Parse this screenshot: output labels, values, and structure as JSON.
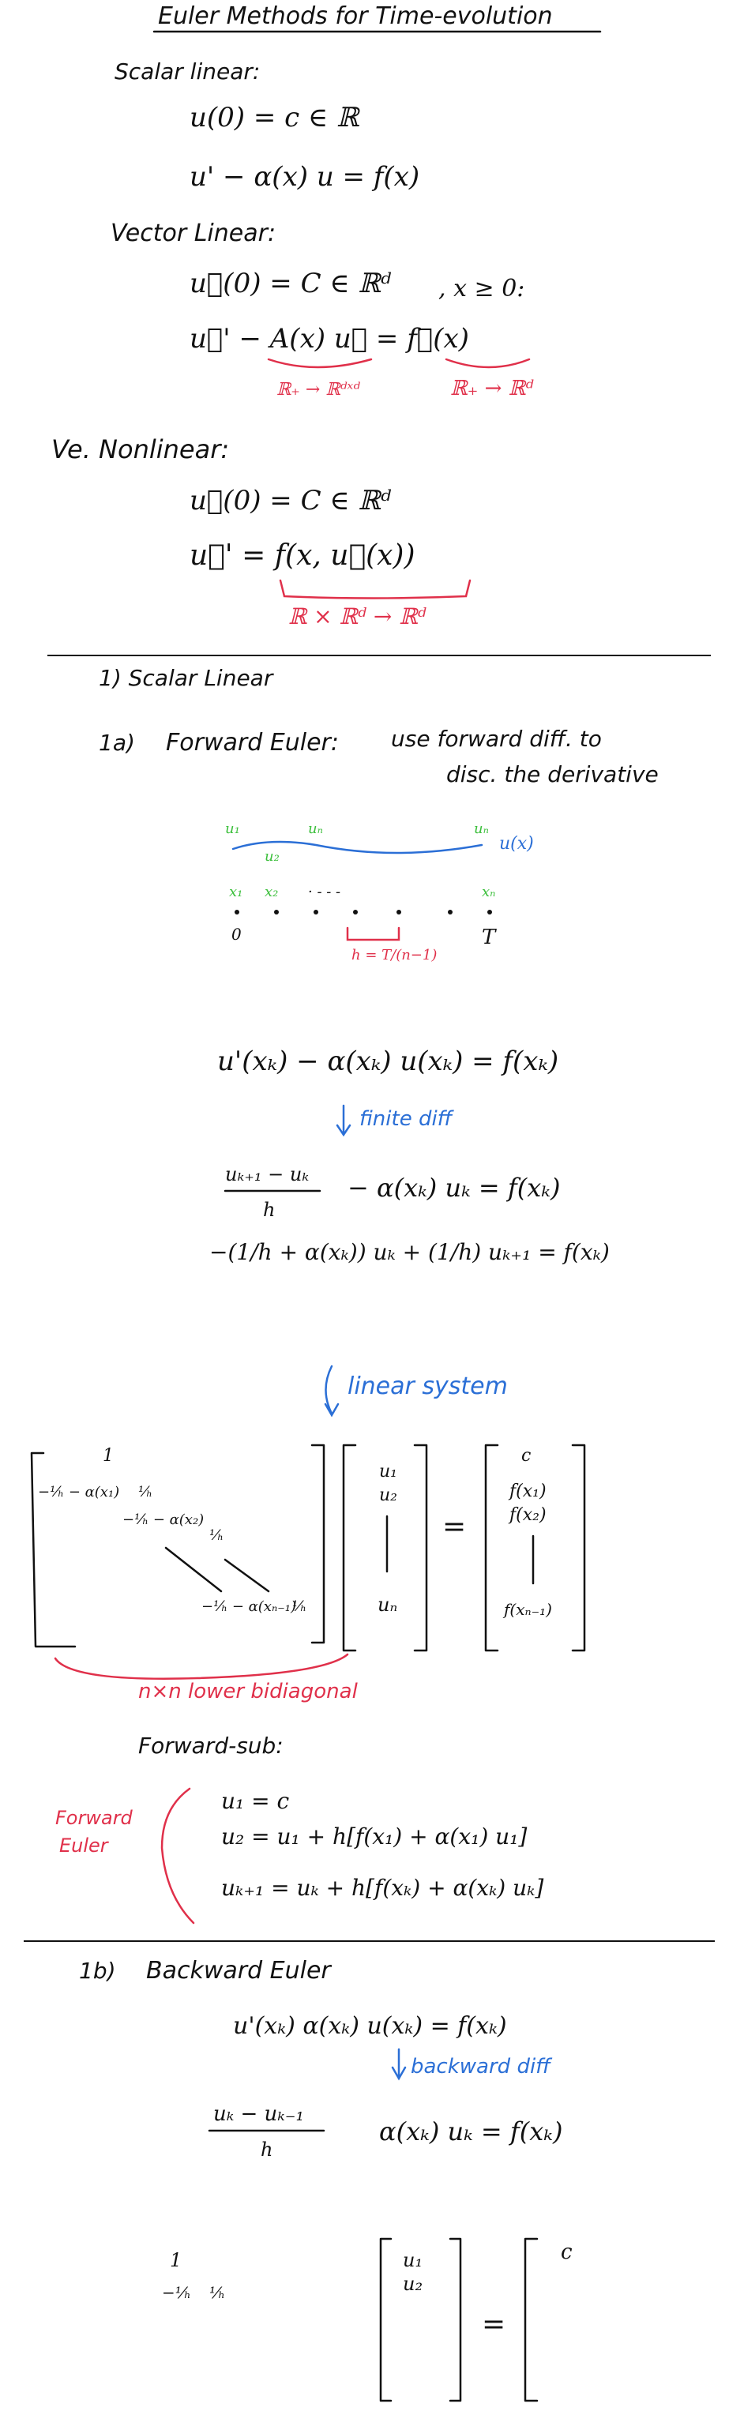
{
  "title": "Euler Methods for Time-evolution",
  "intro": {
    "scalar_heading": "Scalar linear:",
    "scalar_ic": "u(0) = c ∈ ℝ",
    "scalar_ode": "u' − α(x) u = f(x)",
    "vector_heading": "Vector Linear:",
    "vector_ic": "u⃗(0) = C ∈ ℝᵈ",
    "vector_domain": ", x ≥ 0:",
    "vector_ode": "u⃗' − A(x) u⃗ = f⃗(x)",
    "vector_A_note": "ℝ₊ → ℝᵈˣᵈ",
    "vector_f_note": "ℝ₊ → ℝᵈ",
    "nonlinear_heading": "Ve. Nonlinear:",
    "nonlinear_ic": "u⃗(0) = C ∈ ℝᵈ",
    "nonlinear_ode": "u⃗' = f(x, u⃗(x))",
    "nonlinear_note": "ℝ × ℝᵈ → ℝᵈ"
  },
  "section1": {
    "heading": "1) Scalar Linear",
    "sub_label": "1a)",
    "fe_title": "Forward Euler:",
    "fe_desc_1": "use forward diff. to",
    "fe_desc_2": "disc. the derivative",
    "grid": {
      "u1": "u₁",
      "u2": "u₂",
      "un": "uₙ",
      "un_dup": "uₙ",
      "ux": "u(x)",
      "x1": "x₁",
      "x2": "x₂",
      "xn": "xₙ",
      "dashes": "· - - -",
      "zero": "0",
      "T": "T",
      "h": "h = T/(n−1)"
    },
    "eq_cont": "u'(xₖ) − α(xₖ) u(xₖ) = f(xₖ)",
    "note_fd": "finite diff",
    "eq_disc_num": "uₖ₊₁ − uₖ",
    "eq_disc_den": "h",
    "eq_disc_rest": "− α(xₖ) uₖ = f(xₖ)",
    "eq_rearr": "−(1/h + α(xₖ)) uₖ + (1/h) uₖ₊₁ = f(xₖ)",
    "note_ls": "linear system",
    "matrix": {
      "r1": "1",
      "r2a": "−¹⁄ₕ − α(x₁)",
      "r2b": "¹⁄ₕ",
      "r3a": "−¹⁄ₕ − α(x₂)",
      "r3b": "¹⁄ₕ",
      "r4a": "−¹⁄ₕ − α(xₙ₋₁)",
      "r4b": "¹⁄ₕ"
    },
    "vec_u": [
      "u₁",
      "u₂",
      "uₙ"
    ],
    "equals": "=",
    "vec_rhs": [
      "c",
      "f(x₁)",
      "f(x₂)",
      "f(xₙ₋₁)"
    ],
    "bidiag_note": "n×n lower bidiagonal",
    "fs_heading": "Forward-sub:",
    "fe_label_1": "Forward",
    "fe_label_2": "Euler",
    "fs_1": "u₁ = c",
    "fs_2": "u₂ = u₁ + h[f(x₁) + α(x₁) u₁]",
    "fs_3": "uₖ₊₁ = uₖ + h[f(xₖ) + α(xₖ) uₖ]"
  },
  "section1b": {
    "heading_num": "1b)",
    "heading": "Backward Euler",
    "eq_cont": "u'(xₖ)    α(xₖ) u(xₖ) = f(xₖ)",
    "note_bd": "backward diff",
    "eq_disc_num": "uₖ − uₖ₋₁",
    "eq_disc_den": "h",
    "eq_disc_rest": "α(xₖ) uₖ = f(xₖ)",
    "m_r1": "1",
    "m_r2a": "−¹⁄ₕ",
    "m_r2b": "¹⁄ₕ",
    "vec_u": [
      "u₁",
      "u₂"
    ],
    "equals": "=",
    "rhs_c": "c"
  }
}
